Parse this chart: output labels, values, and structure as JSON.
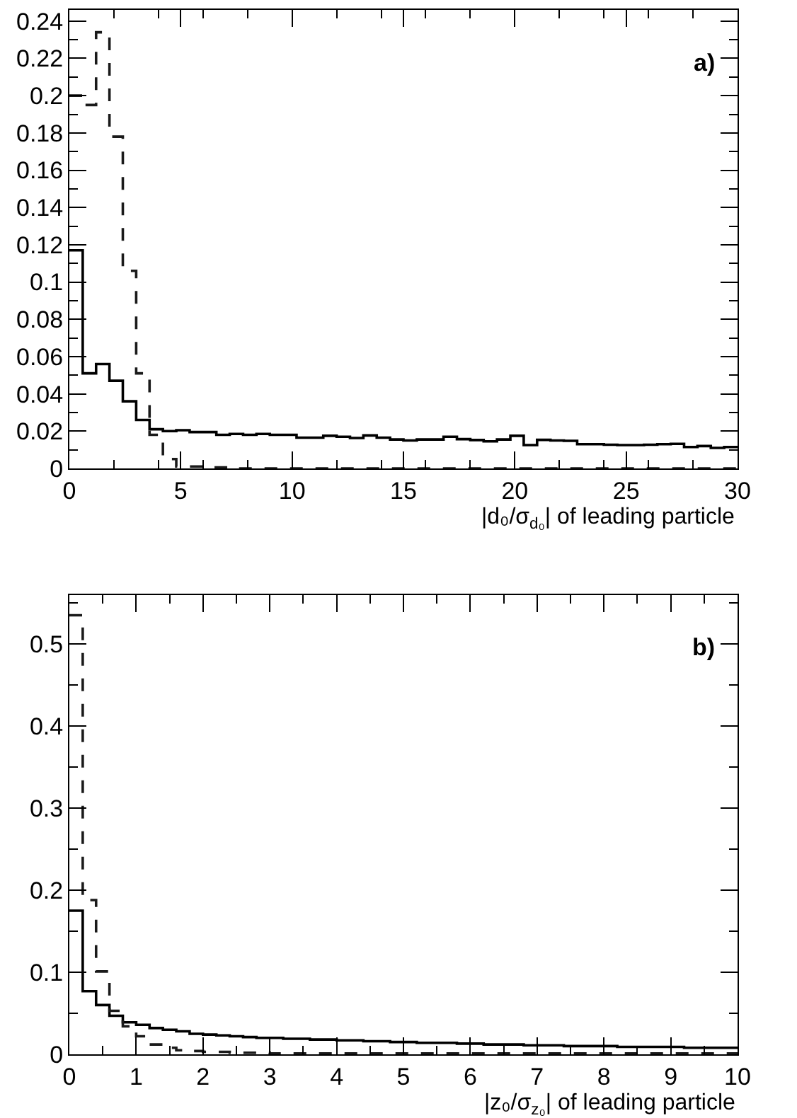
{
  "chart_data": [
    {
      "type": "histogram",
      "xlabel": "|d₀/σ$_{d₀}$| of leading particle",
      "annotations": [
        "a)"
      ],
      "bins": [
        0,
        0.6,
        1.2,
        1.8,
        2.4,
        3,
        3.6,
        4.2,
        4.8,
        5.4,
        6,
        6.6,
        7.2,
        7.8,
        8.4,
        9,
        9.6,
        10.2,
        10.8,
        11.4,
        12,
        12.6,
        13.2,
        13.8,
        14.4,
        15,
        15.6,
        16.2,
        16.8,
        17.4,
        18,
        18.6,
        19.2,
        19.8,
        20.4,
        21,
        21.6,
        22.2,
        22.8,
        23.4,
        24,
        24.6,
        25.2,
        25.8,
        26.4,
        27,
        27.6,
        28.2,
        28.8,
        29.4,
        30
      ],
      "series": [
        {
          "color": "#000000",
          "line_style": "solid",
          "values": [
            0.117,
            0.051,
            0.056,
            0.047,
            0.036,
            0.026,
            0.021,
            0.02,
            0.0205,
            0.0195,
            0.0195,
            0.018,
            0.0185,
            0.018,
            0.0185,
            0.018,
            0.018,
            0.0165,
            0.0165,
            0.0175,
            0.017,
            0.0163,
            0.0177,
            0.0165,
            0.0155,
            0.015,
            0.0155,
            0.0155,
            0.017,
            0.0157,
            0.0152,
            0.0145,
            0.0155,
            0.0175,
            0.0125,
            0.0153,
            0.015,
            0.0148,
            0.013,
            0.013,
            0.0127,
            0.0125,
            0.0125,
            0.0127,
            0.013,
            0.0132,
            0.0115,
            0.012,
            0.011,
            0.0115
          ]
        },
        {
          "color": "#1a1a1a",
          "line_style": "dashed",
          "values": [
            0.2,
            0.195,
            0.234,
            0.178,
            0.106,
            0.051,
            0.018,
            0.005,
            0.001,
            0.001,
            0.0005,
            0.0005,
            0,
            0,
            0,
            0,
            0,
            0,
            0,
            0,
            0,
            0,
            0,
            0,
            0,
            0,
            0,
            0,
            0,
            0,
            0,
            0,
            0,
            0,
            0,
            0,
            0,
            0,
            0,
            0,
            0,
            0,
            0,
            0,
            0,
            0,
            0,
            0,
            0,
            0
          ]
        }
      ],
      "xlim": [
        0,
        30
      ],
      "xticks": [
        0,
        5,
        10,
        15,
        20,
        25,
        30
      ],
      "ylim": [
        0,
        0.246
      ],
      "yticks": [
        0,
        0.02,
        0.04,
        0.06,
        0.08,
        0.1,
        0.12,
        0.14,
        0.16,
        0.18,
        0.2,
        0.22,
        0.24
      ]
    },
    {
      "type": "histogram",
      "xlabel": "|z₀/σ$_{z₀}$| of leading particle",
      "annotations": [
        "b)"
      ],
      "bins": [
        0,
        0.2,
        0.4,
        0.6,
        0.8,
        1,
        1.2,
        1.4,
        1.6,
        1.8,
        2,
        2.2,
        2.4,
        2.6,
        2.8,
        3,
        3.2,
        3.4,
        3.6,
        3.8,
        4,
        4.2,
        4.4,
        4.6,
        4.8,
        5,
        5.2,
        5.4,
        5.6,
        5.8,
        6,
        6.2,
        6.4,
        6.6,
        6.8,
        7,
        7.2,
        7.4,
        7.6,
        7.8,
        8,
        8.2,
        8.4,
        8.6,
        8.8,
        9,
        9.2,
        9.4,
        9.6,
        9.8,
        10
      ],
      "series": [
        {
          "color": "#000000",
          "line_style": "solid",
          "values": [
            0.175,
            0.077,
            0.06,
            0.047,
            0.039,
            0.036,
            0.032,
            0.03,
            0.028,
            0.025,
            0.024,
            0.023,
            0.022,
            0.021,
            0.02,
            0.02,
            0.019,
            0.019,
            0.018,
            0.018,
            0.017,
            0.017,
            0.016,
            0.016,
            0.015,
            0.015,
            0.014,
            0.014,
            0.014,
            0.013,
            0.013,
            0.012,
            0.012,
            0.012,
            0.011,
            0.011,
            0.011,
            0.01,
            0.01,
            0.01,
            0.01,
            0.009,
            0.009,
            0.009,
            0.009,
            0.009,
            0.008,
            0.008,
            0.008,
            0.008
          ]
        },
        {
          "color": "#1a1a1a",
          "line_style": "dashed",
          "values": [
            0.535,
            0.188,
            0.101,
            0.053,
            0.034,
            0.022,
            0.012,
            0.008,
            0.005,
            0.004,
            0.003,
            0.003,
            0.002,
            0.002,
            0.002,
            0.001,
            0.001,
            0.001,
            0.001,
            0.001,
            0.001,
            0.001,
            0.001,
            0.001,
            0.001,
            0.001,
            0.001,
            0.001,
            0.001,
            0.001,
            0.001,
            0.001,
            0.001,
            0.001,
            0.001,
            0.001,
            0.001,
            0.001,
            0.001,
            0.001,
            0.001,
            0.001,
            0.001,
            0.001,
            0.001,
            0.001,
            0.001,
            0.001,
            0.001,
            0.001
          ]
        }
      ],
      "xlim": [
        0,
        10
      ],
      "xticks": [
        0,
        1,
        2,
        3,
        4,
        5,
        6,
        7,
        8,
        9,
        10
      ],
      "ylim": [
        0,
        0.56
      ],
      "yticks": [
        0,
        0.1,
        0.2,
        0.3,
        0.4,
        0.5
      ]
    }
  ]
}
